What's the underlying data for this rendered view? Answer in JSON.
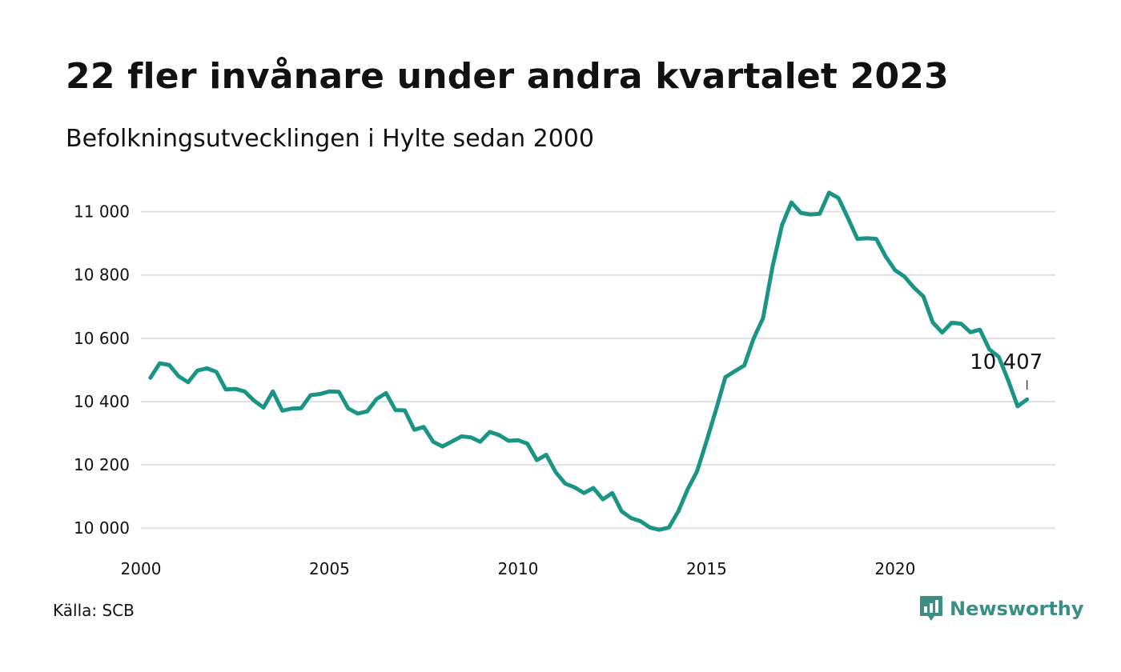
{
  "title": "22 fler invånare under andra kvartalet 2023",
  "subtitle": "Befolkningsutvecklingen i Hylte sedan 2000",
  "source": "Källa: SCB",
  "brand": {
    "name": "Newsworthy",
    "icon": "newsworthy-logo-icon",
    "color": "#3a8f84"
  },
  "colors": {
    "line": "#1a9485",
    "grid": "#e1e1e1"
  },
  "chart_data": {
    "type": "line",
    "title": "22 fler invånare under andra kvartalet 2023",
    "subtitle": "Befolkningsutvecklingen i Hylte sedan 2000",
    "xlabel": "",
    "ylabel": "",
    "xlim": [
      2000,
      2024.25
    ],
    "ylim": [
      9950,
      11100
    ],
    "grid": true,
    "x_ticks": [
      {
        "value": 2000,
        "label": "2000"
      },
      {
        "value": 2005,
        "label": "2005"
      },
      {
        "value": 2010,
        "label": "2010"
      },
      {
        "value": 2015,
        "label": "2015"
      },
      {
        "value": 2020,
        "label": "2020"
      }
    ],
    "y_ticks": [
      {
        "value": 10000,
        "label": "10 000"
      },
      {
        "value": 10200,
        "label": "10 200"
      },
      {
        "value": 10400,
        "label": "10 400"
      },
      {
        "value": 10600,
        "label": "10 600"
      },
      {
        "value": 10800,
        "label": "10 800"
      },
      {
        "value": 11000,
        "label": "11 000"
      }
    ],
    "end_label": {
      "x": 2023.5,
      "y": 10407,
      "text": "10 407"
    },
    "series": [
      {
        "x": [
          2000.25,
          2000.5,
          2000.75,
          2001.0,
          2001.25,
          2001.5,
          2001.75,
          2002.0,
          2002.25,
          2002.5,
          2002.75,
          2003.0,
          2003.25,
          2003.5,
          2003.75,
          2004.0,
          2004.25,
          2004.5,
          2004.75,
          2005.0,
          2005.25,
          2005.5,
          2005.75,
          2006.0,
          2006.25,
          2006.5,
          2006.75,
          2007.0,
          2007.25,
          2007.5,
          2007.75,
          2008.0,
          2008.25,
          2008.5,
          2008.75,
          2009.0,
          2009.25,
          2009.5,
          2009.75,
          2010.0,
          2010.25,
          2010.5,
          2010.75,
          2011.0,
          2011.25,
          2011.5,
          2011.75,
          2012.0,
          2012.25,
          2012.5,
          2012.75,
          2013.0,
          2013.25,
          2013.5,
          2013.75,
          2014.0,
          2014.25,
          2014.5,
          2014.75,
          2015.0,
          2015.25,
          2015.5,
          2015.75,
          2016.0,
          2016.25,
          2016.5,
          2016.75,
          2017.0,
          2017.25,
          2017.5,
          2017.75,
          2018.0,
          2018.25,
          2018.5,
          2018.75,
          2019.0,
          2019.25,
          2019.5,
          2019.75,
          2020.0,
          2020.25,
          2020.5,
          2020.75,
          2021.0,
          2021.25,
          2021.5,
          2021.75,
          2022.0,
          2022.25,
          2022.5,
          2022.75,
          2023.0,
          2023.25,
          2023.5
        ],
        "values": [
          10475,
          10521,
          10516,
          10480,
          10461,
          10498,
          10505,
          10494,
          10438,
          10440,
          10432,
          10403,
          10381,
          10432,
          10371,
          10378,
          10379,
          10420,
          10424,
          10432,
          10431,
          10378,
          10362,
          10369,
          10408,
          10427,
          10373,
          10372,
          10311,
          10320,
          10273,
          10258,
          10274,
          10290,
          10287,
          10273,
          10304,
          10294,
          10276,
          10278,
          10267,
          10215,
          10232,
          10177,
          10141,
          10129,
          10111,
          10127,
          10091,
          10111,
          10053,
          10032,
          10022,
          10002,
          9995,
          10002,
          10053,
          10123,
          10180,
          10275,
          10374,
          10477,
          10496,
          10514,
          10600,
          10664,
          10826,
          10957,
          11029,
          10996,
          10991,
          10993,
          11060,
          11043,
          10980,
          10914,
          10916,
          10914,
          10858,
          10815,
          10795,
          10760,
          10732,
          10650,
          10618,
          10649,
          10646,
          10619,
          10627,
          10565,
          10541,
          10467,
          10385,
          10407
        ]
      }
    ]
  }
}
